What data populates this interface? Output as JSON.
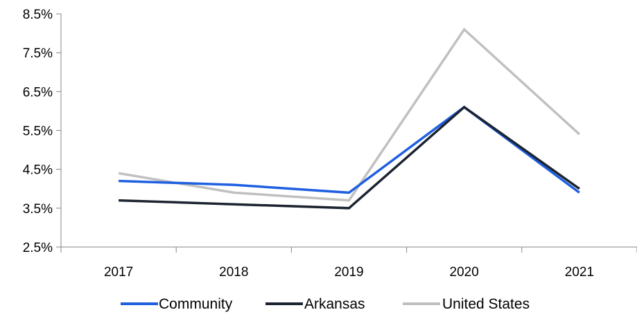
{
  "chart_data": {
    "type": "line",
    "title": "",
    "xlabel": "",
    "ylabel": "",
    "categories": [
      "2017",
      "2018",
      "2019",
      "2020",
      "2021"
    ],
    "ylim": [
      2.5,
      8.5
    ],
    "yticks": [
      2.5,
      3.5,
      4.5,
      5.5,
      6.5,
      7.5,
      8.5
    ],
    "ytick_labels": [
      "2.5%",
      "3.5%",
      "4.5%",
      "5.5%",
      "6.5%",
      "7.5%",
      "8.5%"
    ],
    "grid": false,
    "legend_position": "bottom",
    "series": [
      {
        "name": "Community",
        "color": "#1f5fe0",
        "values": [
          4.2,
          4.1,
          3.9,
          6.1,
          3.9
        ]
      },
      {
        "name": "Arkansas",
        "color": "#1c2431",
        "values": [
          3.7,
          3.6,
          3.5,
          6.1,
          4.0
        ]
      },
      {
        "name": "United States",
        "color": "#c0c0c0",
        "values": [
          4.4,
          3.9,
          3.7,
          8.1,
          5.4
        ]
      }
    ]
  }
}
